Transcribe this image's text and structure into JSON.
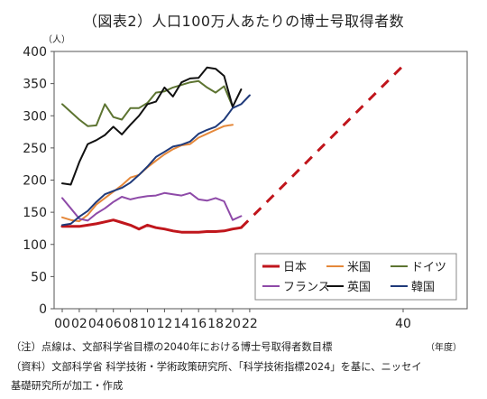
{
  "chart_data": {
    "type": "line",
    "title": "（図表2）人口100万人あたりの博士号取得者数",
    "ylabel": "（人）",
    "xlabel": "（年度）",
    "ylim": [
      0,
      400
    ],
    "yticks": [
      0,
      50,
      100,
      150,
      200,
      250,
      300,
      350,
      400
    ],
    "xlim": [
      0,
      42
    ],
    "xticks": [
      {
        "value": 0,
        "label": "00"
      },
      {
        "value": 2,
        "label": "02"
      },
      {
        "value": 4,
        "label": "04"
      },
      {
        "value": 6,
        "label": "06"
      },
      {
        "value": 8,
        "label": "08"
      },
      {
        "value": 10,
        "label": "10"
      },
      {
        "value": 12,
        "label": "12"
      },
      {
        "value": 14,
        "label": "14"
      },
      {
        "value": 16,
        "label": "16"
      },
      {
        "value": 18,
        "label": "18"
      },
      {
        "value": 20,
        "label": "20"
      },
      {
        "value": 22,
        "label": "22"
      },
      {
        "value": 40,
        "label": "40"
      }
    ],
    "grid": false,
    "legend": "bottom-right inside plot",
    "series": [
      {
        "name": "日本",
        "color": "#c0161c",
        "width": 3,
        "points": [
          [
            0,
            128
          ],
          [
            1,
            128
          ],
          [
            2,
            128
          ],
          [
            3,
            130
          ],
          [
            4,
            132
          ],
          [
            5,
            135
          ],
          [
            6,
            138
          ],
          [
            7,
            134
          ],
          [
            8,
            130
          ],
          [
            9,
            124
          ],
          [
            10,
            130
          ],
          [
            11,
            126
          ],
          [
            12,
            124
          ],
          [
            13,
            121
          ],
          [
            14,
            119
          ],
          [
            15,
            119
          ],
          [
            16,
            119
          ],
          [
            17,
            120
          ],
          [
            18,
            120
          ],
          [
            19,
            121
          ],
          [
            20,
            124
          ],
          [
            21,
            126
          ]
        ]
      },
      {
        "name": "日本目標",
        "color": "#c0161c",
        "width": 3,
        "dashed": true,
        "points": [
          [
            21,
            126
          ],
          [
            40,
            378
          ]
        ]
      },
      {
        "name": "米国",
        "color": "#e5883a",
        "width": 2,
        "points": [
          [
            0,
            142
          ],
          [
            1,
            138
          ],
          [
            2,
            136
          ],
          [
            3,
            146
          ],
          [
            4,
            162
          ],
          [
            5,
            172
          ],
          [
            6,
            182
          ],
          [
            7,
            192
          ],
          [
            8,
            204
          ],
          [
            9,
            208
          ],
          [
            10,
            220
          ],
          [
            11,
            230
          ],
          [
            12,
            240
          ],
          [
            13,
            248
          ],
          [
            14,
            254
          ],
          [
            15,
            256
          ],
          [
            16,
            266
          ],
          [
            17,
            272
          ],
          [
            18,
            278
          ],
          [
            19,
            284
          ],
          [
            20,
            286
          ]
        ]
      },
      {
        "name": "ドイツ",
        "color": "#5d7431",
        "width": 2,
        "points": [
          [
            0,
            318
          ],
          [
            1,
            306
          ],
          [
            2,
            294
          ],
          [
            3,
            284
          ],
          [
            4,
            285
          ],
          [
            5,
            318
          ],
          [
            6,
            298
          ],
          [
            7,
            294
          ],
          [
            8,
            312
          ],
          [
            9,
            312
          ],
          [
            10,
            320
          ],
          [
            11,
            336
          ],
          [
            12,
            338
          ],
          [
            13,
            344
          ],
          [
            14,
            348
          ],
          [
            15,
            352
          ],
          [
            16,
            354
          ],
          [
            17,
            344
          ],
          [
            18,
            336
          ],
          [
            19,
            346
          ],
          [
            20,
            314
          ]
        ]
      },
      {
        "name": "フランス",
        "color": "#8e4aa8",
        "width": 2,
        "points": [
          [
            0,
            172
          ],
          [
            1,
            156
          ],
          [
            2,
            140
          ],
          [
            3,
            137
          ],
          [
            4,
            148
          ],
          [
            5,
            156
          ],
          [
            6,
            166
          ],
          [
            7,
            174
          ],
          [
            8,
            170
          ],
          [
            9,
            173
          ],
          [
            10,
            175
          ],
          [
            11,
            176
          ],
          [
            12,
            180
          ],
          [
            13,
            178
          ],
          [
            14,
            176
          ],
          [
            15,
            180
          ],
          [
            16,
            170
          ],
          [
            17,
            168
          ],
          [
            18,
            172
          ],
          [
            19,
            167
          ],
          [
            20,
            138
          ],
          [
            21,
            144
          ]
        ]
      },
      {
        "name": "英国",
        "color": "#111111",
        "width": 2,
        "points": [
          [
            0,
            195
          ],
          [
            1,
            193
          ],
          [
            2,
            228
          ],
          [
            3,
            256
          ],
          [
            4,
            262
          ],
          [
            5,
            270
          ],
          [
            6,
            283
          ],
          [
            7,
            271
          ],
          [
            8,
            286
          ],
          [
            9,
            300
          ],
          [
            10,
            318
          ],
          [
            11,
            322
          ],
          [
            12,
            344
          ],
          [
            13,
            330
          ],
          [
            14,
            352
          ],
          [
            15,
            358
          ],
          [
            16,
            359
          ],
          [
            17,
            375
          ],
          [
            18,
            373
          ],
          [
            19,
            362
          ],
          [
            20,
            314
          ],
          [
            21,
            341
          ]
        ]
      },
      {
        "name": "韓国",
        "color": "#1f3a7a",
        "width": 2,
        "points": [
          [
            0,
            130
          ],
          [
            1,
            132
          ],
          [
            2,
            143
          ],
          [
            3,
            152
          ],
          [
            4,
            166
          ],
          [
            5,
            178
          ],
          [
            6,
            183
          ],
          [
            7,
            188
          ],
          [
            8,
            196
          ],
          [
            9,
            208
          ],
          [
            10,
            221
          ],
          [
            11,
            236
          ],
          [
            12,
            244
          ],
          [
            13,
            252
          ],
          [
            14,
            255
          ],
          [
            15,
            260
          ],
          [
            16,
            272
          ],
          [
            17,
            278
          ],
          [
            18,
            283
          ],
          [
            19,
            294
          ],
          [
            20,
            312
          ],
          [
            21,
            318
          ],
          [
            22,
            332
          ]
        ]
      }
    ],
    "legend_entries": [
      {
        "name": "日本",
        "color": "#c0161c",
        "width": 3
      },
      {
        "name": "米国",
        "color": "#e5883a",
        "width": 2
      },
      {
        "name": "ドイツ",
        "color": "#5d7431",
        "width": 2
      },
      {
        "name": "フランス",
        "color": "#8e4aa8",
        "width": 2
      },
      {
        "name": "英国",
        "color": "#111111",
        "width": 2
      },
      {
        "name": "韓国",
        "color": "#1f3a7a",
        "width": 2
      }
    ]
  },
  "notes": {
    "note1": "（注）点線は、文部科学省目標の2040年における博士号取得者数目標",
    "note2": "（資料）文部科学省 科学技術・学術政策研究所、「科学技術指標2024」を基に、ニッセイ",
    "note3": "基礎研究所が加工・作成"
  }
}
